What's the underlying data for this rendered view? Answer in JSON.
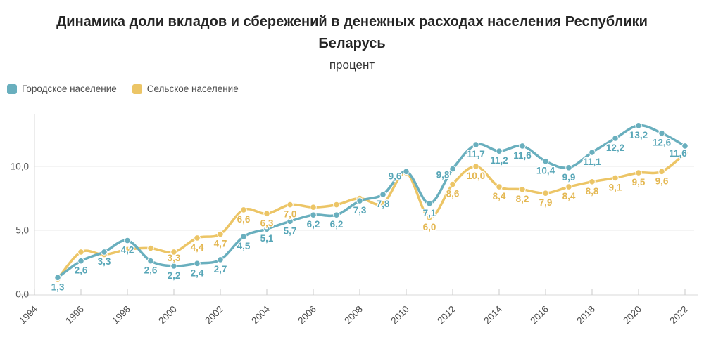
{
  "title": "Динамика доли вкладов и сбережений в денежных расходах населения Республики Беларусь",
  "subtitle": "процент",
  "colors": {
    "urban": "#69afbe",
    "rural": "#ecc566",
    "urban_label": "#57a6b7",
    "rural_label": "#e4b853",
    "grid": "#e9e9e9",
    "axis": "#dadada",
    "tick": "#c9c9c9",
    "y_text": "#595959",
    "x_text": "#4a4a4a"
  },
  "chart_data": {
    "type": "line",
    "title": "Динамика доли вкладов и сбережений в денежных расходах населения Республики Беларусь",
    "ylabel": "процент",
    "x": [
      1995,
      1996,
      1997,
      1998,
      1999,
      2000,
      2001,
      2002,
      2003,
      2004,
      2005,
      2006,
      2007,
      2008,
      2009,
      2010,
      2011,
      2012,
      2013,
      2014,
      2015,
      2016,
      2017,
      2018,
      2019,
      2020,
      2021,
      2022
    ],
    "series": [
      {
        "name": "Городское население",
        "color_key": "urban",
        "values": [
          1.3,
          2.6,
          3.3,
          4.2,
          2.6,
          2.2,
          2.4,
          2.7,
          4.5,
          5.1,
          5.7,
          6.2,
          6.2,
          7.3,
          7.8,
          9.6,
          7.1,
          9.8,
          11.7,
          11.2,
          11.6,
          10.4,
          9.9,
          11.1,
          12.2,
          13.2,
          12.6,
          11.6
        ],
        "labeled": [
          true,
          true,
          true,
          true,
          true,
          true,
          true,
          true,
          true,
          true,
          true,
          true,
          true,
          true,
          true,
          true,
          true,
          true,
          true,
          true,
          true,
          true,
          true,
          true,
          true,
          true,
          true,
          true
        ]
      },
      {
        "name": "Сельское население",
        "color_key": "rural",
        "values": [
          1.2,
          3.3,
          3.1,
          3.5,
          3.6,
          3.3,
          4.4,
          4.7,
          6.6,
          6.3,
          7.0,
          6.8,
          7.0,
          7.5,
          7.1,
          9.5,
          6.0,
          8.6,
          10.0,
          8.4,
          8.2,
          7.9,
          8.4,
          8.8,
          9.1,
          9.5,
          9.6,
          11.0
        ],
        "labeled": [
          false,
          false,
          false,
          false,
          false,
          true,
          true,
          true,
          true,
          true,
          true,
          false,
          false,
          false,
          false,
          false,
          true,
          true,
          true,
          true,
          true,
          true,
          true,
          true,
          true,
          true,
          true,
          false
        ]
      }
    ],
    "x_ticks": [
      1994,
      1996,
      1998,
      2000,
      2002,
      2004,
      2006,
      2008,
      2010,
      2012,
      2014,
      2016,
      2018,
      2020,
      2022
    ],
    "y_ticks": [
      0,
      5,
      10
    ],
    "y_tick_labels": [
      "0,0",
      "5,0",
      "10,0"
    ],
    "xlim": [
      1994,
      2022
    ],
    "ylim": [
      0,
      14.5
    ],
    "grid": "horizontal",
    "legend_position": "top-left",
    "decimal_separator": ","
  }
}
